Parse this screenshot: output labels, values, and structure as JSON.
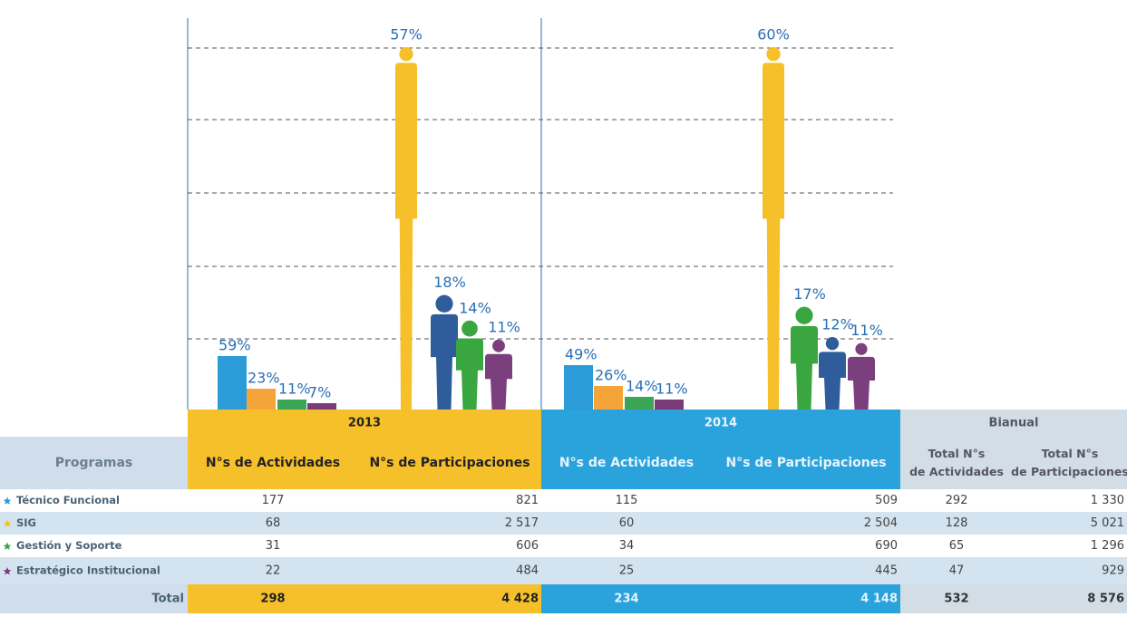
{
  "chart_data": [
    {
      "type": "bar",
      "series": [
        {
          "values": [
            59,
            23,
            11,
            7
          ],
          "value_labels": [
            "59%",
            "23%",
            "11%",
            "7%"
          ],
          "colors": [
            "#2b9cd8",
            "#f5a43a",
            "#3aa655",
            "#7a3b78"
          ]
        },
        {
          "values": [
            57,
            18,
            14,
            11
          ],
          "value_labels": [
            "57%",
            "18%",
            "14%",
            "11%"
          ],
          "colors": [
            "#f5c02a",
            "#2f5d9c",
            "#3aa640",
            "#7b3f7e"
          ]
        }
      ]
    },
    {
      "type": "bar",
      "series": [
        {
          "values": [
            49,
            26,
            14,
            11
          ],
          "value_labels": [
            "49%",
            "26%",
            "14%",
            "11%"
          ],
          "colors": [
            "#2b9cd8",
            "#f5a43a",
            "#3aa655",
            "#7a3b78"
          ]
        },
        {
          "values": [
            60,
            17,
            12,
            11
          ],
          "value_labels": [
            "60%",
            "17%",
            "12%",
            "11%"
          ],
          "colors": [
            "#f5c02a",
            "#3aa640",
            "#2f5d9c",
            "#7b3f7e"
          ]
        }
      ]
    }
  ],
  "table": {
    "groups": [
      "2013",
      "2014",
      "Bianual"
    ],
    "header": [
      "Programas",
      "N°s de Actividades",
      "N°s de Participaciones",
      "N°s de Actividades",
      "N°s de Participaciones",
      "Total N°s de Actividades",
      "Total N°s de Participaciones"
    ],
    "row_colors": [
      "#2b9cd8",
      "#f5c02a",
      "#3aa655",
      "#7a3b78"
    ],
    "rows": [
      [
        "Técnico Funcional",
        "177",
        "821",
        "115",
        "509",
        "292",
        "1 330"
      ],
      [
        "SIG",
        "68",
        "2 517",
        "60",
        "2 504",
        "128",
        "5 021"
      ],
      [
        "Gestión y Soporte",
        "31",
        "606",
        "34",
        "690",
        "65",
        "1 296"
      ],
      [
        "Estratégico Institucional",
        "22",
        "484",
        "25",
        "445",
        "47",
        "929"
      ]
    ],
    "total": [
      "Total",
      "298",
      "4 428",
      "234",
      "4 148",
      "532",
      "8 576"
    ]
  }
}
